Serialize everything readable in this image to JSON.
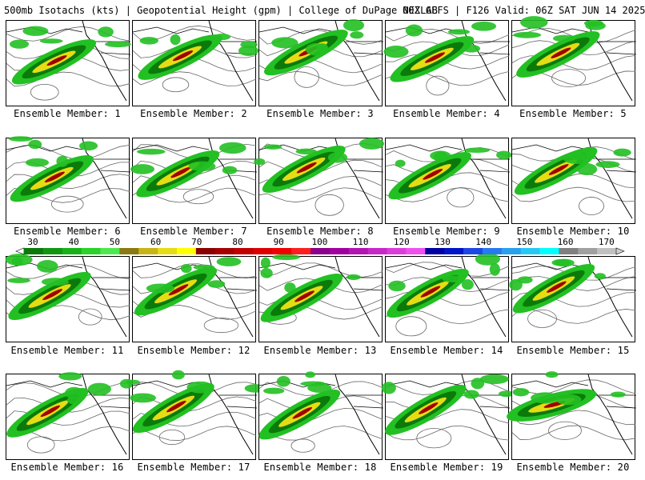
{
  "header": {
    "left": "500mb Isotachs (kts) | Geopotential Height (gpm) | College of DuPage NEXLAB",
    "right": "00Z GEFS | F126 Valid: 06Z SAT JUN 14 2025"
  },
  "panels": [
    {
      "label": "Ensemble Member: 1"
    },
    {
      "label": "Ensemble Member: 2"
    },
    {
      "label": "Ensemble Member: 3"
    },
    {
      "label": "Ensemble Member: 4"
    },
    {
      "label": "Ensemble Member: 5"
    },
    {
      "label": "Ensemble Member: 6"
    },
    {
      "label": "Ensemble Member: 7"
    },
    {
      "label": "Ensemble Member: 8"
    },
    {
      "label": "Ensemble Member: 9"
    },
    {
      "label": "Ensemble Member: 10"
    },
    {
      "label": "Ensemble Member: 11"
    },
    {
      "label": "Ensemble Member: 12"
    },
    {
      "label": "Ensemble Member: 13"
    },
    {
      "label": "Ensemble Member: 14"
    },
    {
      "label": "Ensemble Member: 15"
    },
    {
      "label": "Ensemble Member: 16"
    },
    {
      "label": "Ensemble Member: 17"
    },
    {
      "label": "Ensemble Member: 18"
    },
    {
      "label": "Ensemble Member: 19"
    },
    {
      "label": "Ensemble Member: 20"
    }
  ],
  "colorbar": {
    "labels": [
      "30",
      "40",
      "50",
      "60",
      "70",
      "80",
      "90",
      "100",
      "110",
      "120",
      "130",
      "140",
      "150",
      "160",
      "170"
    ],
    "colors": [
      "#0b7a0b",
      "#129612",
      "#17b217",
      "#2ad22a",
      "#4ee84e",
      "#8a7a14",
      "#c8b414",
      "#e6dc14",
      "#ffff00",
      "#8b0000",
      "#a50000",
      "#c00000",
      "#dc0000",
      "#f00000",
      "#ff1e1e",
      "#8b008b",
      "#a000a0",
      "#b414b4",
      "#c828c8",
      "#dc3cdc",
      "#f050f0",
      "#0000a0",
      "#0014c8",
      "#1e46e6",
      "#2878f0",
      "#28a0f0",
      "#28c8f5",
      "#00ffff",
      "#808080",
      "#a0a0a0",
      "#c0c0c0"
    ]
  },
  "palette": {
    "green": "#22c022",
    "darkgreen": "#0a7a0a",
    "yellow": "#e6dc14",
    "red": "#a00000",
    "height": "#666666"
  }
}
